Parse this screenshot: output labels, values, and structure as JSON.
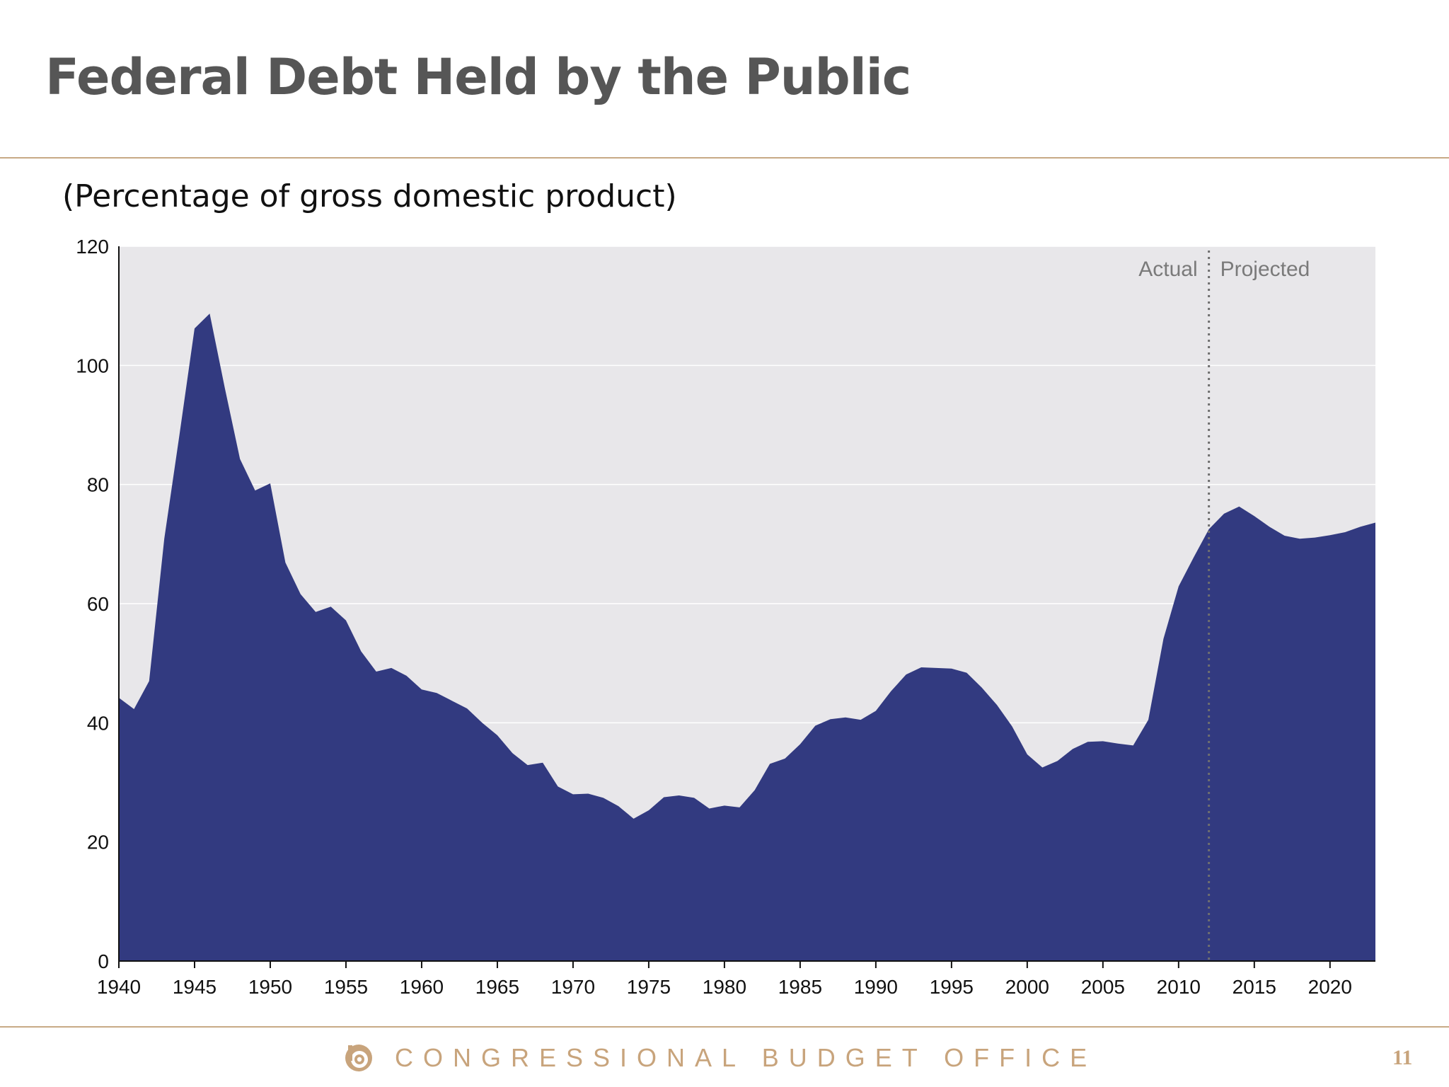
{
  "slide": {
    "title": "Federal Debt Held by the Public",
    "page_number": "11"
  },
  "footer": {
    "organization": "CONGRESSIONAL BUDGET OFFICE",
    "logo_icon": "cbo-logo-icon"
  },
  "colors": {
    "area": "#323a80",
    "plot_background": "#e8e7ea",
    "accent": "#c8a47c"
  },
  "chart_data": {
    "type": "area",
    "title": "",
    "subtitle": "(Percentage of gross domestic product)",
    "xlabel": "",
    "ylabel": "",
    "xlim": [
      1940,
      2023
    ],
    "ylim": [
      0,
      120
    ],
    "x_ticks": [
      1940,
      1945,
      1950,
      1955,
      1960,
      1965,
      1970,
      1975,
      1980,
      1985,
      1990,
      1995,
      2000,
      2005,
      2010,
      2015,
      2020
    ],
    "y_ticks": [
      0,
      20,
      40,
      60,
      80,
      100,
      120
    ],
    "grid": "horizontal",
    "divider": {
      "x": 2012,
      "style": "dotted",
      "left_label": "Actual",
      "right_label": "Projected"
    },
    "series": [
      {
        "x": [
          1940,
          1941,
          1942,
          1943,
          1944,
          1945,
          1946,
          1947,
          1948,
          1949,
          1950,
          1951,
          1952,
          1953,
          1954,
          1955,
          1956,
          1957,
          1958,
          1959,
          1960,
          1961,
          1962,
          1963,
          1964,
          1965,
          1966,
          1967,
          1968,
          1969,
          1970,
          1971,
          1972,
          1973,
          1974,
          1975,
          1976,
          1977,
          1978,
          1979,
          1980,
          1981,
          1982,
          1983,
          1984,
          1985,
          1986,
          1987,
          1988,
          1989,
          1990,
          1991,
          1992,
          1993,
          1994,
          1995,
          1996,
          1997,
          1998,
          1999,
          2000,
          2001,
          2002,
          2003,
          2004,
          2005,
          2006,
          2007,
          2008,
          2009,
          2010,
          2011,
          2012,
          2013,
          2014,
          2015,
          2016,
          2017,
          2018,
          2019,
          2020,
          2021,
          2022,
          2023
        ],
        "values": [
          44.2,
          42.3,
          47.0,
          70.9,
          88.3,
          106.2,
          108.7,
          96.2,
          84.3,
          79.0,
          80.2,
          66.9,
          61.6,
          58.6,
          59.5,
          57.2,
          52.0,
          48.6,
          49.2,
          47.9,
          45.6,
          45.0,
          43.7,
          42.4,
          40.0,
          37.9,
          34.9,
          32.9,
          33.3,
          29.3,
          28.0,
          28.1,
          27.4,
          26.0,
          23.9,
          25.3,
          27.5,
          27.8,
          27.4,
          25.6,
          26.1,
          25.8,
          28.7,
          33.1,
          34.0,
          36.4,
          39.5,
          40.6,
          40.9,
          40.5,
          42.0,
          45.3,
          48.1,
          49.3,
          49.2,
          49.1,
          48.4,
          45.9,
          43.0,
          39.4,
          34.7,
          32.5,
          33.6,
          35.6,
          36.8,
          36.9,
          36.5,
          36.2,
          40.5,
          54.1,
          62.9,
          67.8,
          72.5,
          75.1,
          76.3,
          74.7,
          72.9,
          71.4,
          70.9,
          71.1,
          71.5,
          72.0,
          72.9,
          73.6
        ]
      }
    ]
  }
}
